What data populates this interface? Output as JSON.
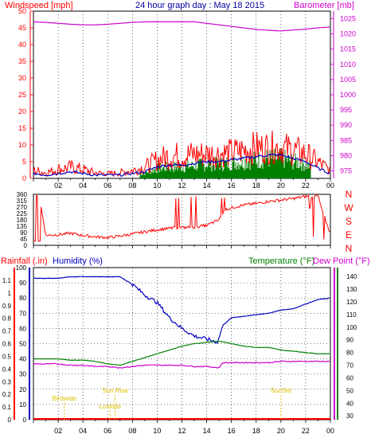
{
  "header": {
    "left_label": "Windspeed [mph]",
    "title": "24 hour graph day : May 18 2015",
    "right_label": "Barometer [mb]"
  },
  "compass_labels": [
    "N",
    "W",
    "S",
    "E",
    "N"
  ],
  "lower_labels": {
    "rainfall": "Rainfall (.in)",
    "humidity": "Humidity (%)",
    "temperature": "Temperature (°F)",
    "dew_point": "Dew Point (°F)"
  },
  "colors": {
    "wind": "#ff0000",
    "gust_green": "#008000",
    "wind_avg": "#0000c0",
    "barometer": "#cc00cc",
    "direction": "#ff0000",
    "humidity": "#0000c0",
    "temperature": "#008000",
    "dewpoint": "#cc00cc",
    "events": "#e0c000",
    "axis_left": "#ff0000",
    "axis_right": "#cc00cc",
    "axis_humidity": "#0000c0",
    "axis_temp": "#008000"
  },
  "chart_data": [
    {
      "type": "line",
      "name": "wind",
      "x_tick_labels": [
        "02",
        "04",
        "06",
        "08",
        "10",
        "12",
        "14",
        "16",
        "18",
        "20",
        "22",
        "00"
      ],
      "x_range_hours": [
        0,
        24
      ],
      "y_left": {
        "label": "Windspeed [mph]",
        "ticks": [
          0,
          5,
          10,
          15,
          20,
          25,
          30,
          35,
          40,
          45,
          50
        ],
        "range": [
          0,
          50
        ]
      },
      "y_right": {
        "label": "Barometer [mb]",
        "ticks": [
          975,
          980,
          985,
          990,
          995,
          1000,
          1005,
          1010,
          1015,
          1020,
          1025
        ],
        "range": [
          972.5,
          1027.5
        ]
      },
      "series": [
        {
          "name": "Windspeed",
          "axis": "left",
          "x": [
            0,
            1,
            2,
            3,
            4,
            5,
            6,
            7,
            8,
            9,
            10,
            11,
            12,
            13,
            14,
            15,
            16,
            17,
            18,
            19,
            20,
            21,
            22,
            23,
            24
          ],
          "y": [
            3.5,
            2.5,
            4,
            5,
            4,
            2.5,
            2,
            2.5,
            3.5,
            5,
            8,
            10,
            10,
            10.5,
            10.5,
            10.5,
            11,
            12,
            13,
            13,
            13,
            12,
            10.5,
            7,
            3.5
          ]
        },
        {
          "name": "Average",
          "axis": "left",
          "x": [
            0,
            1,
            2,
            3,
            4,
            5,
            6,
            7,
            8,
            9,
            10,
            11,
            12,
            13,
            14,
            15,
            16,
            17,
            18,
            19,
            20,
            21,
            22,
            23,
            24
          ],
          "y": [
            1.5,
            1,
            1.5,
            2,
            1.5,
            1,
            1,
            1,
            1.5,
            2,
            3.5,
            4,
            4,
            4.5,
            5,
            5,
            5.5,
            6,
            6.5,
            7,
            7,
            6,
            5,
            3,
            1.5
          ]
        },
        {
          "name": "Barometer",
          "axis": "right",
          "x": [
            0,
            1,
            2,
            3,
            4,
            5,
            6,
            7,
            8,
            9,
            10,
            11,
            12,
            13,
            14,
            15,
            16,
            17,
            18,
            19,
            20,
            21,
            22,
            23,
            24
          ],
          "y": [
            1024,
            1023.8,
            1023.5,
            1023.2,
            1023,
            1023,
            1023.2,
            1023.5,
            1023.8,
            1024,
            1024,
            1024,
            1024,
            1024,
            1023.5,
            1023,
            1022.5,
            1022,
            1021.5,
            1021.2,
            1021,
            1021.3,
            1021.6,
            1022,
            1022.3
          ]
        }
      ]
    },
    {
      "type": "line",
      "name": "wind_direction",
      "y_left": {
        "ticks": [
          0,
          45,
          90,
          135,
          180,
          225,
          270,
          315,
          360
        ],
        "range": [
          0,
          360
        ]
      },
      "series": [
        {
          "name": "Direction",
          "x": [
            0,
            0.5,
            1,
            2,
            3,
            4,
            5,
            6,
            7,
            8,
            9,
            10,
            11,
            12,
            13,
            14,
            15,
            15.5,
            16,
            17,
            18,
            19,
            20,
            21,
            22,
            23,
            24
          ],
          "y": [
            40,
            330,
            70,
            75,
            85,
            70,
            60,
            55,
            65,
            80,
            95,
            110,
            120,
            125,
            130,
            140,
            180,
            250,
            265,
            285,
            295,
            310,
            320,
            330,
            345,
            350,
            75
          ]
        }
      ]
    },
    {
      "type": "line",
      "name": "humidity_temperature",
      "y_rain": {
        "label": "Rainfall (.in)",
        "ticks": [
          "0",
          "0.1",
          "0.2",
          "0.3",
          "0.4",
          "0.5",
          "0.6",
          "0.7",
          "0.8",
          "0.9",
          "1",
          "1.1"
        ],
        "range": [
          0,
          1.2
        ]
      },
      "y_humidity": {
        "label": "Humidity (%)",
        "ticks": [
          0,
          10,
          20,
          30,
          40,
          50,
          60,
          70,
          80,
          90,
          100
        ],
        "range": [
          0,
          100
        ]
      },
      "y_temp": {
        "label": "Temperature (°F)",
        "ticks": [
          30,
          40,
          50,
          60,
          70,
          80,
          90,
          100,
          110,
          120,
          130,
          140
        ],
        "range": [
          27,
          147
        ]
      },
      "series": [
        {
          "name": "Humidity",
          "axis": "humidity",
          "x": [
            0,
            1,
            2,
            3,
            4,
            5,
            6,
            7,
            8,
            9,
            10,
            11,
            12,
            13,
            14,
            14.9,
            15,
            15.3,
            16,
            17,
            18,
            19,
            20,
            21,
            22,
            23,
            24
          ],
          "y": [
            93,
            93,
            93,
            94,
            94,
            94,
            94,
            94,
            89,
            82,
            77,
            67,
            60,
            55,
            53,
            51,
            54,
            62,
            67,
            68,
            69,
            70,
            72,
            73,
            76,
            79,
            80
          ]
        },
        {
          "name": "Temperature",
          "axis": "temp",
          "x": [
            0,
            1,
            2,
            3,
            4,
            5,
            6,
            7,
            8,
            9,
            10,
            11,
            12,
            13,
            14,
            15,
            16,
            17,
            18,
            19,
            20,
            21,
            22,
            23,
            24
          ],
          "y": [
            75,
            75,
            75,
            74,
            74,
            73,
            71,
            70,
            73,
            76,
            79,
            82,
            85,
            87,
            88,
            89,
            87,
            85,
            84,
            84,
            82,
            81,
            80,
            79,
            79
          ]
        },
        {
          "name": "Dew Point",
          "axis": "temp",
          "x": [
            0,
            1,
            2,
            3,
            4,
            5,
            6,
            7,
            8,
            9,
            10,
            11,
            12,
            13,
            14,
            14.9,
            15,
            15.3,
            16,
            17,
            18,
            19,
            20,
            21,
            22,
            23,
            24
          ],
          "y": [
            71,
            71,
            71,
            70,
            70,
            69,
            69,
            68,
            69,
            70,
            70,
            70,
            70,
            69,
            69,
            68,
            68,
            72,
            72,
            72,
            72,
            72,
            73,
            73,
            73,
            73,
            73
          ]
        }
      ],
      "event_markers": [
        {
          "label": "Birdwide",
          "x": 2.5,
          "level": 1
        },
        {
          "label": "Sun Rise",
          "x": 6.6,
          "level": 2
        },
        {
          "label": "Lowtide",
          "x": 6.2,
          "level": 0
        },
        {
          "label": "SunSet",
          "x": 20,
          "level": 2
        }
      ]
    }
  ]
}
